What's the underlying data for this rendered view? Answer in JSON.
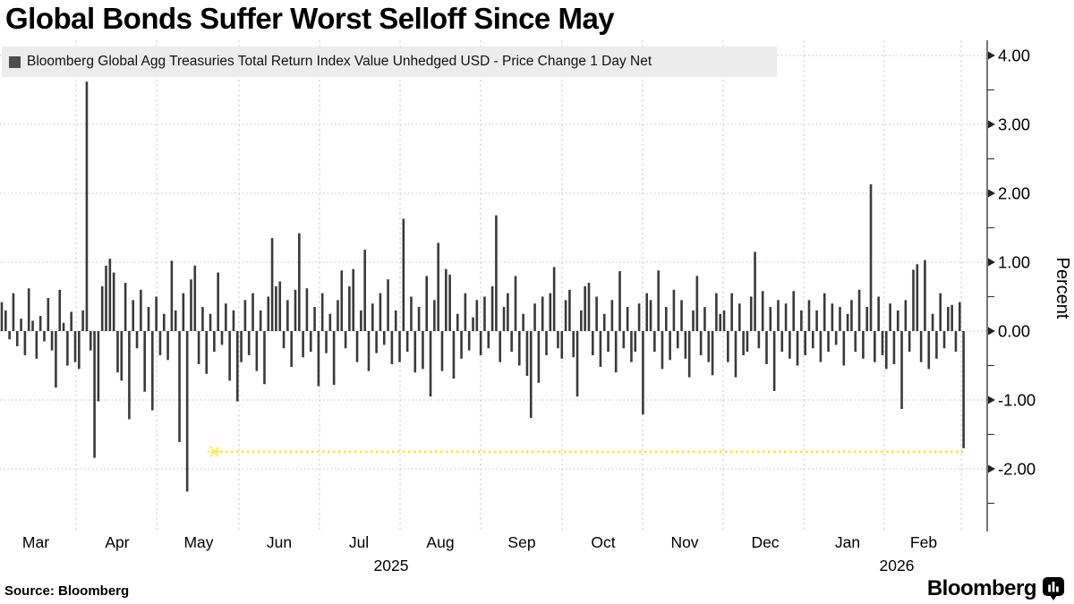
{
  "title": "Global Bonds Suffer Worst Selloff Since May",
  "legend": {
    "label": "Bloomberg Global Agg Treasuries Total Return Index Value Unhedged USD - Price Change 1 Day Net",
    "marker_color": "#4d4d4d",
    "background": "#ececec"
  },
  "footer": {
    "source": "Source: Bloomberg",
    "brand": "Bloomberg",
    "brand_icon": "bloomberg-bar-chart-bubble-icon"
  },
  "chart_data": {
    "type": "bar",
    "title": "Global Bonds Suffer Worst Selloff Since May",
    "series": [
      {
        "name": "Bloomberg Global Agg Treasuries Total Return Index Value Unhedged USD - Price Change 1 Day Net",
        "color": "#3a3a3a",
        "values": [
          0.42,
          0.3,
          -0.12,
          0.55,
          -0.22,
          0.18,
          -0.35,
          0.62,
          0.15,
          -0.4,
          0.22,
          -0.15,
          0.48,
          -0.28,
          -0.82,
          0.6,
          0.12,
          -0.5,
          0.28,
          -0.45,
          -0.55,
          0.3,
          3.62,
          -0.28,
          -1.84,
          -1.02,
          0.65,
          0.95,
          1.05,
          0.85,
          -0.6,
          -0.72,
          0.7,
          -1.28,
          0.45,
          -0.25,
          0.6,
          -0.88,
          0.35,
          -1.15,
          0.5,
          -0.35,
          0.25,
          -0.42,
          1.02,
          0.3,
          -1.61,
          0.55,
          -2.33,
          0.75,
          0.95,
          -0.48,
          0.35,
          -0.62,
          0.25,
          -0.3,
          0.85,
          -0.2,
          0.4,
          -0.72,
          0.3,
          -1.02,
          -0.45,
          0.45,
          -0.35,
          0.55,
          -0.58,
          0.3,
          -0.77,
          0.5,
          1.35,
          0.65,
          0.72,
          -0.25,
          0.45,
          -0.52,
          0.6,
          1.42,
          -0.38,
          0.62,
          -0.3,
          0.35,
          -0.8,
          0.55,
          -0.32,
          0.25,
          -0.78,
          0.45,
          0.88,
          -0.25,
          0.65,
          0.9,
          -0.45,
          0.3,
          1.18,
          -0.58,
          0.4,
          -0.32,
          0.55,
          -0.2,
          0.75,
          -0.48,
          0.3,
          -0.45,
          1.63,
          -0.3,
          0.5,
          -0.6,
          0.35,
          -0.55,
          0.8,
          -0.95,
          0.45,
          1.28,
          -0.58,
          0.9,
          0.82,
          -0.69,
          0.25,
          -0.4,
          0.55,
          -0.28,
          0.2,
          0.45,
          -0.35,
          0.5,
          -0.25,
          0.65,
          1.68,
          -0.45,
          0.35,
          0.55,
          -0.3,
          0.8,
          -0.5,
          0.25,
          -0.65,
          -1.26,
          0.4,
          -0.75,
          0.5,
          -0.35,
          0.55,
          0.93,
          -0.25,
          -0.4,
          0.45,
          0.6,
          -0.38,
          -0.95,
          0.3,
          0.65,
          0.7,
          -0.35,
          0.5,
          -0.52,
          0.25,
          -0.3,
          0.45,
          -0.6,
          0.87,
          -0.25,
          0.35,
          -0.45,
          -0.3,
          0.4,
          -1.21,
          0.55,
          0.45,
          -0.3,
          0.88,
          -0.55,
          0.35,
          -0.42,
          0.6,
          -0.25,
          0.45,
          -0.4,
          -0.67,
          0.3,
          0.8,
          -0.35,
          0.35,
          -0.45,
          -0.64,
          0.55,
          0.25,
          0.3,
          -0.45,
          0.55,
          -0.67,
          0.4,
          -0.35,
          -0.3,
          0.5,
          1.15,
          -0.25,
          0.58,
          -0.48,
          0.35,
          -0.87,
          0.45,
          -0.3,
          0.4,
          -0.4,
          0.58,
          -0.5,
          0.3,
          -0.35,
          0.45,
          -0.25,
          0.3,
          -0.45,
          0.55,
          -0.3,
          0.4,
          -0.2,
          0.35,
          -0.5,
          0.25,
          0.45,
          -0.3,
          0.6,
          -0.4,
          0.35,
          2.13,
          -0.45,
          0.5,
          -0.35,
          -0.55,
          0.4,
          -0.48,
          0.3,
          -1.13,
          0.45,
          -0.3,
          0.89,
          0.97,
          -0.45,
          1.03,
          -0.55,
          0.25,
          -0.4,
          0.55,
          -0.25,
          0.35,
          0.38,
          -0.3,
          0.42,
          -1.7
        ]
      }
    ],
    "ylabel": "Percent",
    "y_ticks": {
      "labels": [
        "4.00",
        "3.00",
        "2.00",
        "1.00",
        "0.00",
        "-1.00",
        "-2.00"
      ],
      "values": [
        4,
        3,
        2,
        1,
        0,
        -1,
        -2
      ]
    },
    "y_minor_tick_values": [
      3.5,
      2.5,
      1.5,
      0.5,
      -0.5,
      -1.5,
      -2.5
    ],
    "ylim": [
      -2.9,
      4.25
    ],
    "x_month_labels": [
      "Mar",
      "Apr",
      "May",
      "Jun",
      "Jul",
      "Aug",
      "Sep",
      "Oct",
      "Nov",
      "Dec",
      "Jan",
      "Feb"
    ],
    "x_year_labels": [
      "2025",
      "2026"
    ],
    "grid": true,
    "legend_position": "top-left",
    "annotation_line": {
      "value": -1.75,
      "color": "#ffe100",
      "style": "dotted",
      "description": "level line from mid-May low to latest bar"
    }
  }
}
